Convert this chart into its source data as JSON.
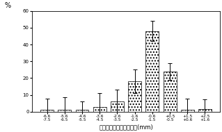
{
  "labels_line1": [
    "-6.6",
    "-5.6",
    "-4.6",
    "-3.6",
    "-2.6",
    "-1.6",
    "-0.6",
    "+0.5",
    "+1.5",
    "+2.5"
  ],
  "labels_line2": [
    "-7.5",
    "-6.5",
    "-5.5",
    "-4.5",
    "-3.5",
    "-2.5",
    "-1.5",
    "-0.5",
    "+0.6",
    "+1.6"
  ],
  "values": [
    1.0,
    1.0,
    1.0,
    3.0,
    6.0,
    18.0,
    48.0,
    24.0,
    1.0,
    1.5
  ],
  "error_low": [
    7.0,
    7.5,
    5.0,
    8.0,
    7.0,
    7.0,
    6.0,
    5.0,
    7.0,
    6.0
  ],
  "error_high": [
    7.0,
    7.5,
    5.0,
    8.0,
    7.0,
    7.0,
    6.0,
    5.0,
    7.0,
    6.0
  ],
  "ylim": [
    0,
    60
  ],
  "yticks": [
    0,
    10,
    20,
    30,
    40,
    50,
    60
  ],
  "ylabel": "%",
  "xlabel": "歯槽骨レベルの平均変化(mm)",
  "figsize": [
    3.19,
    1.9
  ],
  "dpi": 100
}
